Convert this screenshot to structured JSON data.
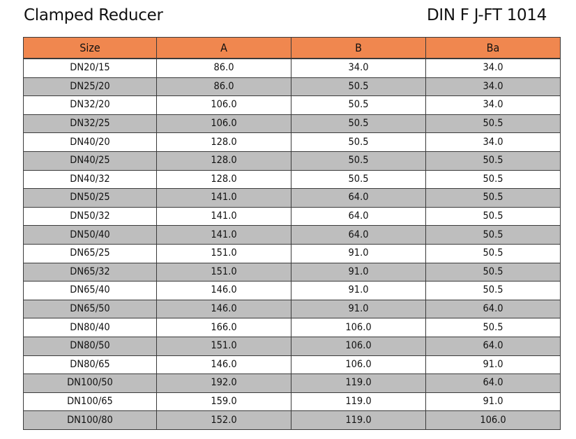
{
  "title": "Clamped Reducer",
  "code": "DIN   F J-FT 1014",
  "colors": {
    "header_bg": "#f0874f",
    "stripe_bg": "#bebebe",
    "border": "#3a3a3a"
  },
  "table": {
    "headers": [
      "Size",
      "A",
      "B",
      "Ba"
    ],
    "rows": [
      [
        "DN20/15",
        "86.0",
        "34.0",
        "34.0"
      ],
      [
        "DN25/20",
        "86.0",
        "50.5",
        "34.0"
      ],
      [
        "DN32/20",
        "106.0",
        "50.5",
        "34.0"
      ],
      [
        "DN32/25",
        "106.0",
        "50.5",
        "50.5"
      ],
      [
        "DN40/20",
        "128.0",
        "50.5",
        "34.0"
      ],
      [
        "DN40/25",
        "128.0",
        "50.5",
        "50.5"
      ],
      [
        "DN40/32",
        "128.0",
        "50.5",
        "50.5"
      ],
      [
        "DN50/25",
        "141.0",
        "64.0",
        "50.5"
      ],
      [
        "DN50/32",
        "141.0",
        "64.0",
        "50.5"
      ],
      [
        "DN50/40",
        "141.0",
        "64.0",
        "50.5"
      ],
      [
        "DN65/25",
        "151.0",
        "91.0",
        "50.5"
      ],
      [
        "DN65/32",
        "151.0",
        "91.0",
        "50.5"
      ],
      [
        "DN65/40",
        "146.0",
        "91.0",
        "50.5"
      ],
      [
        "DN65/50",
        "146.0",
        "91.0",
        "64.0"
      ],
      [
        "DN80/40",
        "166.0",
        "106.0",
        "50.5"
      ],
      [
        "DN80/50",
        "151.0",
        "106.0",
        "64.0"
      ],
      [
        "DN80/65",
        "146.0",
        "106.0",
        "91.0"
      ],
      [
        "DN100/50",
        "192.0",
        "119.0",
        "64.0"
      ],
      [
        "DN100/65",
        "159.0",
        "119.0",
        "91.0"
      ],
      [
        "DN100/80",
        "152.0",
        "119.0",
        "106.0"
      ]
    ]
  }
}
